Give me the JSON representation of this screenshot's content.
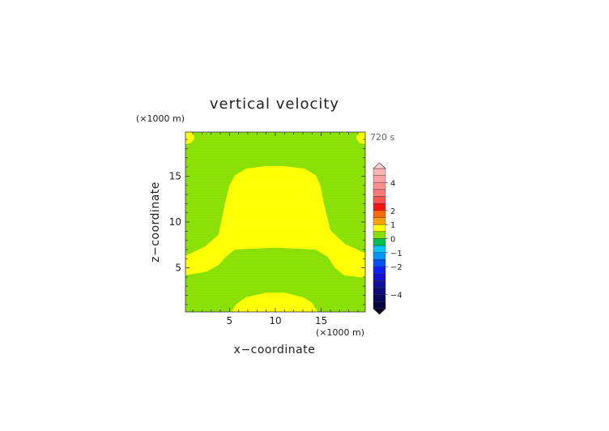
{
  "chart_data": {
    "type": "heatmap",
    "title": "vertical velocity",
    "xlabel": "x−coordinate",
    "ylabel": "z−coordinate",
    "x_unit": "(×1000 m)",
    "y_unit": "(×1000 m)",
    "time_label": "720 s",
    "xlim": [
      0.2,
      19.8
    ],
    "ylim": [
      0.2,
      19.8
    ],
    "x_ticks": [
      5,
      10,
      15
    ],
    "y_ticks": [
      5,
      10,
      15
    ],
    "background_level": "0 to 0.5",
    "colors": {
      "green_0_to_0p5": "#88e000",
      "yellow_0p5_to_1": "#ffff00"
    },
    "regions": [
      {
        "name": "upper-lobe",
        "value_range": [
          0.5,
          1
        ],
        "polygon": [
          [
            4.5,
            12
          ],
          [
            5,
            14
          ],
          [
            5.6,
            15.1
          ],
          [
            6.8,
            15.8
          ],
          [
            9,
            16.1
          ],
          [
            10.8,
            16.1
          ],
          [
            13.2,
            15.8
          ],
          [
            14.4,
            15.1
          ],
          [
            14.9,
            14
          ],
          [
            15.3,
            12
          ],
          [
            16,
            9.1
          ],
          [
            17.6,
            7.6
          ],
          [
            19.8,
            6.6
          ],
          [
            19.8,
            3.9
          ],
          [
            17.5,
            4.2
          ],
          [
            16.5,
            5
          ],
          [
            15.7,
            6.2
          ],
          [
            14.4,
            7
          ],
          [
            10,
            7.2
          ],
          [
            5.6,
            7
          ],
          [
            4.7,
            6.3
          ],
          [
            3.8,
            5.3
          ],
          [
            2.5,
            4.6
          ],
          [
            0.2,
            4.2
          ],
          [
            0.2,
            6.3
          ],
          [
            2.3,
            7.3
          ],
          [
            3.8,
            8.6
          ]
        ]
      },
      {
        "name": "bottom-lobe",
        "value_range": [
          0.5,
          1
        ],
        "polygon": [
          [
            5.2,
            0.2
          ],
          [
            5.7,
            1
          ],
          [
            6.8,
            1.8
          ],
          [
            9,
            2.3
          ],
          [
            11,
            2.3
          ],
          [
            13,
            1.8
          ],
          [
            14,
            1.2
          ],
          [
            14.6,
            0.2
          ]
        ]
      },
      {
        "name": "corner-top-left",
        "value_range": [
          0.5,
          1
        ],
        "polygon": [
          [
            0.2,
            18.5
          ],
          [
            0.8,
            18.6
          ],
          [
            1.2,
            19.1
          ],
          [
            1,
            19.8
          ],
          [
            0.2,
            19.8
          ]
        ]
      },
      {
        "name": "corner-top-right",
        "value_range": [
          0.5,
          1
        ],
        "polygon": [
          [
            19.8,
            18.5
          ],
          [
            19.2,
            18.6
          ],
          [
            18.8,
            19.1
          ],
          [
            19,
            19.8
          ],
          [
            19.8,
            19.8
          ]
        ]
      }
    ],
    "colorbar": {
      "tick_labels": [
        {
          "value": 4,
          "text": "4"
        },
        {
          "value": 2,
          "text": "2"
        },
        {
          "value": 1,
          "text": "1"
        },
        {
          "value": 0,
          "text": "0"
        },
        {
          "value": -1,
          "text": "−1"
        },
        {
          "value": -2,
          "text": "−2"
        },
        {
          "value": -4,
          "text": "−4"
        }
      ],
      "segments": [
        {
          "from": 4.5,
          "to": 5,
          "color": "#ffb4b4"
        },
        {
          "from": 4,
          "to": 4.5,
          "color": "#ffa0a0"
        },
        {
          "from": 3.5,
          "to": 4,
          "color": "#ff9090"
        },
        {
          "from": 3,
          "to": 3.5,
          "color": "#ff7878"
        },
        {
          "from": 2.5,
          "to": 3,
          "color": "#ff5050"
        },
        {
          "from": 2,
          "to": 2.5,
          "color": "#ff1010"
        },
        {
          "from": 1.5,
          "to": 2,
          "color": "#ff6a00"
        },
        {
          "from": 1,
          "to": 1.5,
          "color": "#ffa000"
        },
        {
          "from": 0.5,
          "to": 1,
          "color": "#ffff00"
        },
        {
          "from": 0,
          "to": 0.5,
          "color": "#88e000"
        },
        {
          "from": -0.5,
          "to": 0,
          "color": "#00c050"
        },
        {
          "from": -1,
          "to": -0.5,
          "color": "#00c8ff"
        },
        {
          "from": -1.5,
          "to": -1,
          "color": "#0096ff"
        },
        {
          "from": -2,
          "to": -1.5,
          "color": "#0050ff"
        },
        {
          "from": -2.5,
          "to": -2,
          "color": "#0a1eff"
        },
        {
          "from": -3,
          "to": -2.5,
          "color": "#1010d0"
        },
        {
          "from": -3.5,
          "to": -3,
          "color": "#1010a0"
        },
        {
          "from": -4,
          "to": -3.5,
          "color": "#0c0c80"
        },
        {
          "from": -4.5,
          "to": -4,
          "color": "#080860"
        },
        {
          "from": -5,
          "to": -4.5,
          "color": "#050540"
        }
      ],
      "range": [
        -5,
        5
      ]
    }
  }
}
